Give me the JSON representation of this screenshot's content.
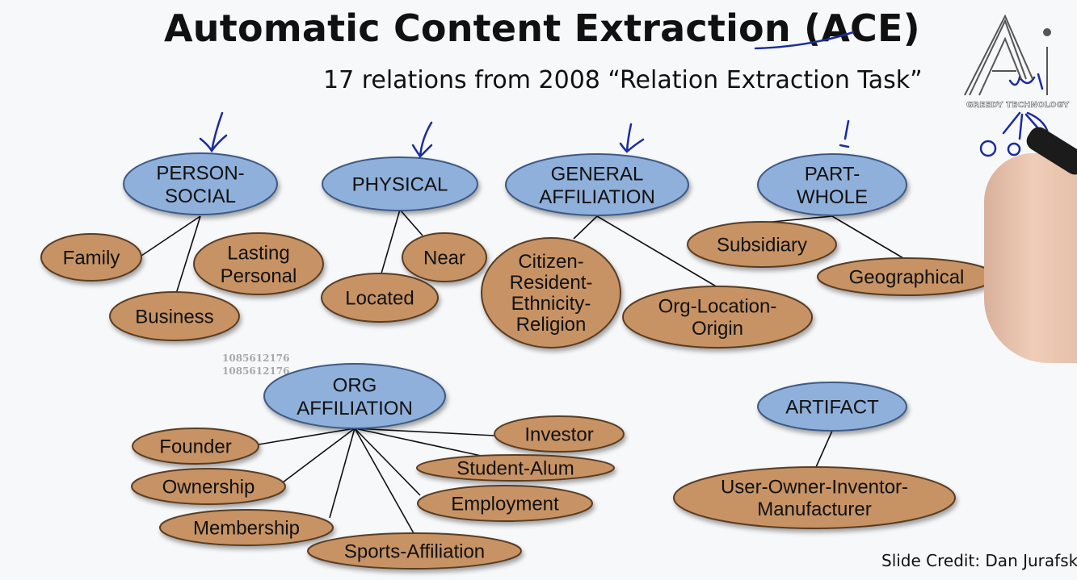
{
  "title": "Automatic Content Extraction (ACE)",
  "subtitle": "17 relations from 2008 “Relation Extraction Task”",
  "credit": "Slide Credit: Dan Jurafsky",
  "watermark_lines": [
    "1085612176",
    "1085612176"
  ],
  "logo": {
    "name": "Ai",
    "caption": "GREEDY TECHNOLOGY",
    "icon": "greedy-technology-logo"
  },
  "colors": {
    "parent_fill": "#8fb0da",
    "parent_stroke": "#3c5a85",
    "child_fill": "#c79365",
    "child_stroke": "#5a3c20",
    "ink": "#1a2ca0"
  },
  "groups": [
    {
      "id": "person-social",
      "label": [
        "PERSON-",
        "SOCIAL"
      ],
      "children": [
        {
          "id": "family",
          "label": [
            "Family"
          ]
        },
        {
          "id": "lasting-personal",
          "label": [
            "Lasting",
            "Personal"
          ]
        },
        {
          "id": "business",
          "label": [
            "Business"
          ]
        }
      ]
    },
    {
      "id": "physical",
      "label": [
        "PHYSICAL"
      ],
      "children": [
        {
          "id": "near",
          "label": [
            "Near"
          ]
        },
        {
          "id": "located",
          "label": [
            "Located"
          ]
        }
      ]
    },
    {
      "id": "general-affiliation",
      "label": [
        "GENERAL",
        "AFFILIATION"
      ],
      "children": [
        {
          "id": "citizen",
          "label": [
            "Citizen-",
            "Resident-",
            "Ethnicity-",
            "Religion"
          ]
        },
        {
          "id": "org-location",
          "label": [
            "Org-Location-",
            "Origin"
          ]
        }
      ]
    },
    {
      "id": "part-whole",
      "label": [
        "PART-",
        "WHOLE"
      ],
      "children": [
        {
          "id": "subsidiary",
          "label": [
            "Subsidiary"
          ]
        },
        {
          "id": "geographical",
          "label": [
            "Geographical"
          ]
        }
      ]
    },
    {
      "id": "org-affiliation",
      "label": [
        "ORG",
        "AFFILIATION"
      ],
      "children": [
        {
          "id": "founder",
          "label": [
            "Founder"
          ]
        },
        {
          "id": "investor",
          "label": [
            "Investor"
          ]
        },
        {
          "id": "student-alum",
          "label": [
            "Student-Alum"
          ]
        },
        {
          "id": "ownership",
          "label": [
            "Ownership"
          ]
        },
        {
          "id": "employment",
          "label": [
            "Employment"
          ]
        },
        {
          "id": "membership",
          "label": [
            "Membership"
          ]
        },
        {
          "id": "sports",
          "label": [
            "Sports-Affiliation"
          ]
        }
      ]
    },
    {
      "id": "artifact",
      "label": [
        "ARTIFACT"
      ],
      "children": [
        {
          "id": "user-owner",
          "label": [
            "User-Owner-Inventor-",
            "Manufacturer"
          ]
        }
      ]
    }
  ]
}
